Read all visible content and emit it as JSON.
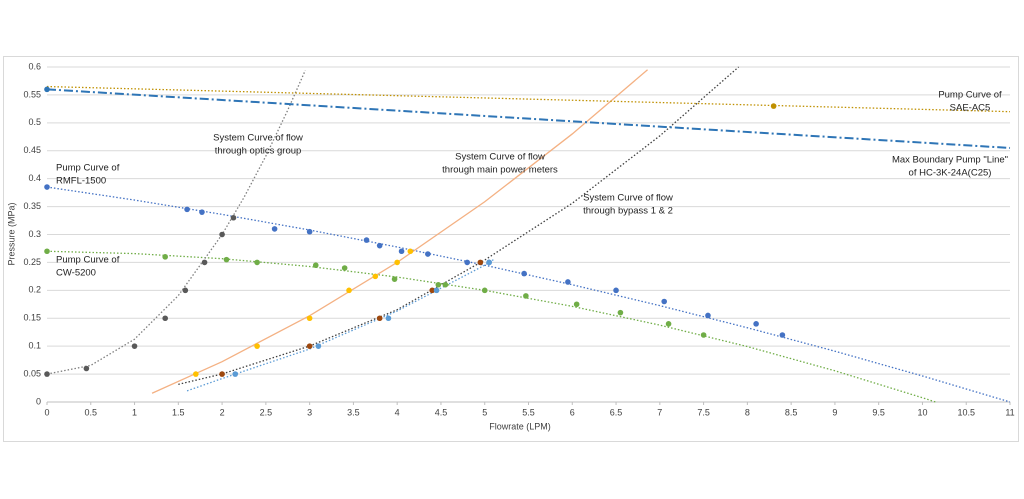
{
  "chart_data": {
    "type": "scatter",
    "x_label": "Flowrate (LPM)",
    "y_label": "Pressure (MPa)",
    "xlim": [
      0,
      11
    ],
    "ylim": [
      0,
      0.6
    ],
    "xticks": [
      0,
      0.5,
      1,
      1.5,
      2,
      2.5,
      3,
      3.5,
      4,
      4.5,
      5,
      5.5,
      6,
      6.5,
      7,
      7.5,
      8,
      8.5,
      9,
      9.5,
      10,
      10.5,
      11
    ],
    "yticks": [
      0,
      0.05,
      0.1,
      0.15,
      0.2,
      0.25,
      0.3,
      0.35,
      0.4,
      0.45,
      0.5,
      0.55,
      0.6
    ],
    "grid": true,
    "annotations": [
      [
        "Pump Curve of",
        "SAE-AC5"
      ],
      [
        "Max Boundary Pump \"Line\"",
        "of HC-3K-24A(C25)"
      ],
      [
        "System Curve of flow",
        "through optics group"
      ],
      [
        "System Curve of flow",
        "through main power meters"
      ],
      [
        "System Curve of flow",
        "through bypass 1 & 2"
      ],
      [
        "Pump Curve of",
        "RMFL-1500"
      ],
      [
        "Pump Curve of",
        "CW-5200"
      ]
    ],
    "series": [
      {
        "color": "#4472c4",
        "line_color": "#4472c4",
        "line_style": "dotted",
        "x": [
          0,
          1.6,
          1.77,
          2.6,
          3,
          3.65,
          3.8,
          4.05,
          4.35,
          4.8,
          5.05,
          5.45,
          5.95,
          6.5,
          7.05,
          7.55,
          8.1,
          8.4
        ],
        "values": [
          0.385,
          0.345,
          0.34,
          0.31,
          0.305,
          0.29,
          0.28,
          0.27,
          0.265,
          0.25,
          0.25,
          0.23,
          0.215,
          0.2,
          0.18,
          0.155,
          0.14,
          0.12
        ],
        "trend_x": [
          0,
          1,
          2,
          3,
          4,
          5,
          6,
          7,
          8,
          9,
          10,
          11
        ],
        "trend_values": [
          0.385,
          0.3617,
          0.336,
          0.308,
          0.2776,
          0.245,
          0.21,
          0.1726,
          0.133,
          0.091,
          0.0466,
          0
        ]
      },
      {
        "color": "#70ad47",
        "line_color": "#70ad47",
        "line_style": "dotted",
        "x": [
          0,
          1.35,
          2.05,
          2.4,
          3.07,
          3.4,
          3.97,
          4.47,
          4.55,
          5,
          5.47,
          6.05,
          6.55,
          7.1,
          7.5
        ],
        "values": [
          0.27,
          0.26,
          0.255,
          0.25,
          0.245,
          0.24,
          0.22,
          0.21,
          0.21,
          0.2,
          0.19,
          0.175,
          0.16,
          0.14,
          0.12
        ],
        "trend_x": [
          0,
          1,
          2,
          3,
          4,
          5,
          6,
          7,
          8,
          9,
          10,
          10.15
        ],
        "trend_values": [
          0.27,
          0.2658,
          0.2567,
          0.2427,
          0.2238,
          0.2,
          0.1713,
          0.1377,
          0.0993,
          0.0559,
          0.0076,
          0
        ]
      },
      {
        "color": "#595959",
        "line_color": "#7f7f7f",
        "line_style": "dotted",
        "x": [
          0,
          0.45,
          1,
          1.35,
          1.58,
          1.8,
          2,
          2.13
        ],
        "values": [
          0.05,
          0.06,
          0.1,
          0.15,
          0.2,
          0.25,
          0.3,
          0.33
        ],
        "trend_x": [
          0,
          0.5,
          1,
          1.5,
          2,
          2.25,
          2.5,
          2.75,
          2.95
        ],
        "trend_values": [
          0.05,
          0.0656,
          0.1125,
          0.1906,
          0.3,
          0.3664,
          0.4406,
          0.5227,
          0.5939
        ]
      },
      {
        "color": "#ffc000",
        "line_color": "#f4b183",
        "line_style": "solid",
        "x": [
          1.7,
          2.4,
          3,
          3.45,
          3.75,
          4,
          4.15
        ],
        "values": [
          0.05,
          0.1,
          0.15,
          0.2,
          0.225,
          0.25,
          0.27
        ],
        "trend_x": [
          1.2,
          2,
          3,
          4,
          5,
          6,
          6.86
        ],
        "trend_values": [
          0.0157,
          0.0722,
          0.1546,
          0.2501,
          0.3586,
          0.4801,
          0.5951
        ]
      },
      {
        "color": "#9e480e",
        "line_color": "#404040",
        "line_style": "dotted",
        "x": [
          2,
          3,
          3.8,
          4.4,
          4.95
        ],
        "values": [
          0.05,
          0.1,
          0.15,
          0.2,
          0.25
        ],
        "trend_x": [
          1.5,
          2,
          3,
          4,
          5,
          6,
          7,
          7.9
        ],
        "trend_values": [
          0.0316,
          0.0502,
          0.1002,
          0.1653,
          0.2543,
          0.356,
          0.4767,
          0.6
        ]
      },
      {
        "color": "#5b9bd5",
        "line_color": "#5b9bd5",
        "line_style": "dotted",
        "x": [
          2.15,
          3.1,
          3.9,
          4.45,
          5.05
        ],
        "values": [
          0.05,
          0.1,
          0.15,
          0.2,
          0.25
        ],
        "trend_x": [
          1.6,
          2,
          3,
          4,
          5,
          5.1
        ],
        "trend_values": [
          0.02,
          0.042,
          0.095,
          0.163,
          0.245,
          0.255
        ]
      },
      {
        "color": "#bf9000",
        "line_color": "#bf9000",
        "line_style": "dotted",
        "x": [
          8.3
        ],
        "values": [
          0.53
        ],
        "trend_x": [
          0,
          11
        ],
        "trend_values": [
          0.565,
          0.52
        ]
      },
      {
        "color": "#2e75b6",
        "line_color": "#2e75b6",
        "line_style": "dashdot",
        "x": [
          0
        ],
        "values": [
          0.56
        ],
        "trend_x": [
          0,
          11
        ],
        "trend_values": [
          0.56,
          0.455
        ]
      }
    ]
  }
}
